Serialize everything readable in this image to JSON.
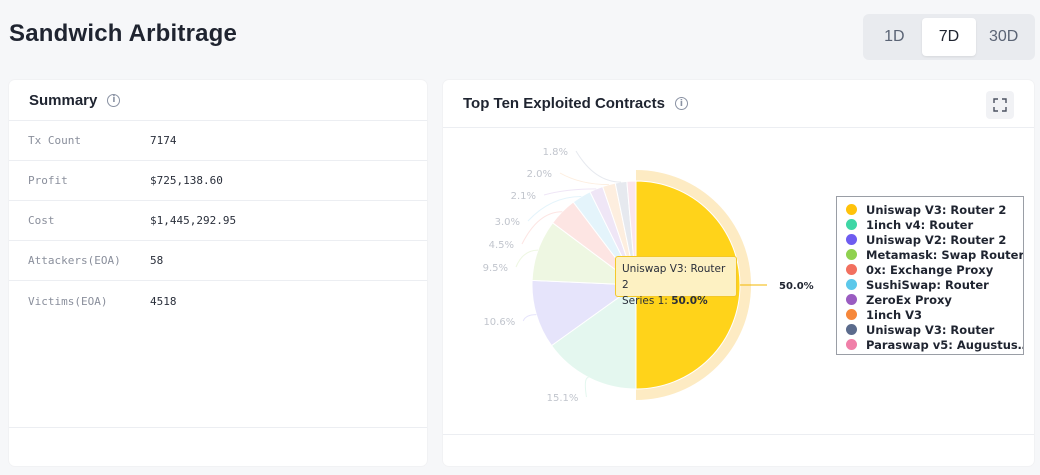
{
  "page": {
    "title": "Sandwich Arbitrage"
  },
  "range": {
    "options": [
      "1D",
      "7D",
      "30D"
    ],
    "active": "7D"
  },
  "summary": {
    "title": "Summary",
    "rows": [
      {
        "label": "Tx Count",
        "value": "7174"
      },
      {
        "label": "Profit",
        "value": "$725,138.60"
      },
      {
        "label": "Cost",
        "value": "$1,445,292.95"
      },
      {
        "label": "Attackers(EOA)",
        "value": "58"
      },
      {
        "label": "Victims(EOA)",
        "value": "4518"
      }
    ]
  },
  "contracts": {
    "title": "Top Ten Exploited Contracts",
    "tooltip": {
      "name": "Uniswap V3: Router 2",
      "series": "Series 1: ",
      "value": "50.0%"
    }
  },
  "chart_data": {
    "type": "pie",
    "title": "Top Ten Exploited Contracts",
    "series_name": "Series 1",
    "slices": [
      {
        "name": "Uniswap V3: Router 2",
        "value": 50.0,
        "label": "50.0%",
        "color": "#ffd31a"
      },
      {
        "name": "1inch v4: Router",
        "value": 15.1,
        "label": "15.1%",
        "color": "#e4f7ef"
      },
      {
        "name": "Uniswap V2: Router 2",
        "value": 10.6,
        "label": "10.6%",
        "color": "#e6e4fb"
      },
      {
        "name": "Metamask: Swap Router",
        "value": 9.5,
        "label": "9.5%",
        "color": "#eef7e2"
      },
      {
        "name": "0x: Exchange Proxy",
        "value": 4.5,
        "label": "4.5%",
        "color": "#fde5e3"
      },
      {
        "name": "SushiSwap: Router",
        "value": 3.0,
        "label": "3.0%",
        "color": "#e4f4fb"
      },
      {
        "name": "ZeroEx Proxy",
        "value": 2.1,
        "label": "2.1%",
        "color": "#efe6f6"
      },
      {
        "name": "1inch V3",
        "value": 2.0,
        "label": "2.0%",
        "color": "#fdeedf"
      },
      {
        "name": "Uniswap V3: Router",
        "value": 1.8,
        "label": "1.8%",
        "color": "#e6e9ef"
      },
      {
        "name": "Paraswap v5: Augustus…",
        "value": 1.4,
        "label": "",
        "color": "#fbe6ee"
      }
    ],
    "legend": [
      {
        "name": "Uniswap V3: Router 2",
        "color": "#ffc20a"
      },
      {
        "name": "1inch v4: Router",
        "color": "#3ed6a5"
      },
      {
        "name": "Uniswap V2: Router 2",
        "color": "#6e5cf0"
      },
      {
        "name": "Metamask: Swap Router",
        "color": "#8fd14f"
      },
      {
        "name": "0x: Exchange Proxy",
        "color": "#f2705f"
      },
      {
        "name": "SushiSwap: Router",
        "color": "#5cc8ea"
      },
      {
        "name": "ZeroEx Proxy",
        "color": "#9a5cc1"
      },
      {
        "name": "1inch V3",
        "color": "#f6873a"
      },
      {
        "name": "Uniswap V3: Router",
        "color": "#5b6b8c"
      },
      {
        "name": "Paraswap v5: Augustus…",
        "color": "#f07fa8"
      }
    ],
    "legend_position": "right"
  }
}
